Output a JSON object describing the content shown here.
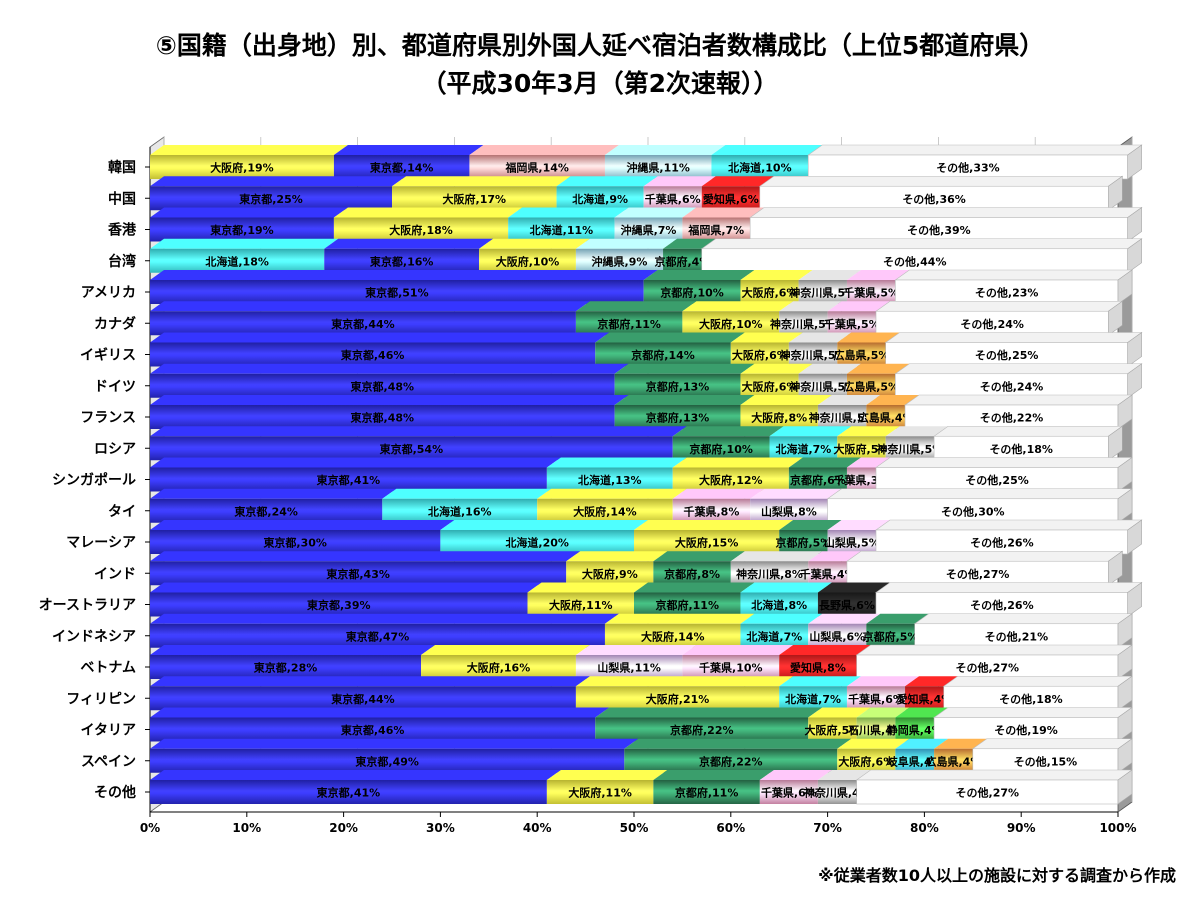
{
  "title_line1": "⑤国籍（出身地）別、都道府県別外国人延べ宿泊者数構成比（上位5都道府県）",
  "title_line2": "（平成30年3月（第2次速報））",
  "footnote": "※従業者数10人以上の施設に対する調査から作成",
  "colors": {
    "東京都": "#2a2ad8",
    "大阪府": "#f4f040",
    "福岡県": "#f39898",
    "沖縄県": "#9ad8f0",
    "北海道": "#3ee6ea",
    "中国_other": "#ffffff",
    "千葉県": "#f4a0c8",
    "愛知県": "#e82020",
    "京都府": "#2e7e56",
    "神奈川県": "#b8b8b8",
    "広島県": "#f29040",
    "山梨県": "#d8b0f0",
    "長野県": "#202020",
    "石川県": "#a0e060",
    "静岡県": "#40b840",
    "岐阜県": "#40c0f0",
    "その他": "#ffffff"
  },
  "chart_data": {
    "type": "bar",
    "orientation": "horizontal",
    "stacked": true,
    "xlim": [
      0,
      100
    ],
    "x_ticks": [
      "0%",
      "10%",
      "20%",
      "30%",
      "40%",
      "50%",
      "60%",
      "70%",
      "80%",
      "90%",
      "100%"
    ],
    "categories": [
      "韓国",
      "中国",
      "香港",
      "台湾",
      "アメリカ",
      "カナダ",
      "イギリス",
      "ドイツ",
      "フランス",
      "ロシア",
      "シンガポール",
      "タイ",
      "マレーシア",
      "インド",
      "オーストラリア",
      "インドネシア",
      "ベトナム",
      "フィリピン",
      "イタリア",
      "スペイン",
      "その他"
    ],
    "rows": [
      [
        [
          "大阪府",
          19
        ],
        [
          "東京都",
          14
        ],
        [
          "福岡県",
          14
        ],
        [
          "沖縄県",
          11
        ],
        [
          "北海道",
          10
        ],
        [
          "その他",
          33
        ]
      ],
      [
        [
          "東京都",
          25
        ],
        [
          "大阪府",
          17
        ],
        [
          "北海道",
          9
        ],
        [
          "千葉県",
          6
        ],
        [
          "愛知県",
          6
        ],
        [
          "その他",
          36
        ]
      ],
      [
        [
          "東京都",
          19
        ],
        [
          "大阪府",
          18
        ],
        [
          "北海道",
          11
        ],
        [
          "沖縄県",
          7
        ],
        [
          "福岡県",
          7
        ],
        [
          "その他",
          39
        ]
      ],
      [
        [
          "北海道",
          18
        ],
        [
          "東京都",
          16
        ],
        [
          "大阪府",
          10
        ],
        [
          "沖縄県",
          9
        ],
        [
          "京都府",
          4
        ],
        [
          "その他",
          44
        ]
      ],
      [
        [
          "東京都",
          51
        ],
        [
          "京都府",
          10
        ],
        [
          "大阪府",
          6
        ],
        [
          "神奈川県",
          5
        ],
        [
          "千葉県",
          5
        ],
        [
          "その他",
          23
        ]
      ],
      [
        [
          "東京都",
          44
        ],
        [
          "京都府",
          11
        ],
        [
          "大阪府",
          10
        ],
        [
          "神奈川県",
          5
        ],
        [
          "千葉県",
          5
        ],
        [
          "その他",
          24
        ]
      ],
      [
        [
          "東京都",
          46
        ],
        [
          "京都府",
          14
        ],
        [
          "大阪府",
          6
        ],
        [
          "神奈川県",
          5
        ],
        [
          "広島県",
          5
        ],
        [
          "その他",
          25
        ]
      ],
      [
        [
          "東京都",
          48
        ],
        [
          "京都府",
          13
        ],
        [
          "大阪府",
          6
        ],
        [
          "神奈川県",
          5
        ],
        [
          "広島県",
          5
        ],
        [
          "その他",
          24
        ]
      ],
      [
        [
          "東京都",
          48
        ],
        [
          "京都府",
          13
        ],
        [
          "大阪府",
          8
        ],
        [
          "神奈川県",
          5
        ],
        [
          "広島県",
          4
        ],
        [
          "その他",
          22
        ]
      ],
      [
        [
          "東京都",
          54
        ],
        [
          "京都府",
          10
        ],
        [
          "北海道",
          7
        ],
        [
          "大阪府",
          5
        ],
        [
          "神奈川県",
          5
        ],
        [
          "その他",
          18
        ]
      ],
      [
        [
          "東京都",
          41
        ],
        [
          "北海道",
          13
        ],
        [
          "大阪府",
          12
        ],
        [
          "京都府",
          6
        ],
        [
          "千葉県",
          3
        ],
        [
          "その他",
          25
        ]
      ],
      [
        [
          "東京都",
          24
        ],
        [
          "北海道",
          16
        ],
        [
          "大阪府",
          14
        ],
        [
          "千葉県",
          8
        ],
        [
          "山梨県",
          8
        ],
        [
          "その他",
          30
        ]
      ],
      [
        [
          "東京都",
          30
        ],
        [
          "北海道",
          20
        ],
        [
          "大阪府",
          15
        ],
        [
          "京都府",
          5
        ],
        [
          "山梨県",
          5
        ],
        [
          "その他",
          26
        ]
      ],
      [
        [
          "東京都",
          43
        ],
        [
          "大阪府",
          9
        ],
        [
          "京都府",
          8
        ],
        [
          "神奈川県",
          8
        ],
        [
          "千葉県",
          4
        ],
        [
          "その他",
          27
        ]
      ],
      [
        [
          "東京都",
          39
        ],
        [
          "大阪府",
          11
        ],
        [
          "京都府",
          11
        ],
        [
          "北海道",
          8
        ],
        [
          "長野県",
          6
        ],
        [
          "その他",
          26
        ]
      ],
      [
        [
          "東京都",
          47
        ],
        [
          "大阪府",
          14
        ],
        [
          "北海道",
          7
        ],
        [
          "山梨県",
          6
        ],
        [
          "京都府",
          5
        ],
        [
          "その他",
          21
        ]
      ],
      [
        [
          "東京都",
          28
        ],
        [
          "大阪府",
          16
        ],
        [
          "山梨県",
          11
        ],
        [
          "千葉県",
          10
        ],
        [
          "愛知県",
          8
        ],
        [
          "その他",
          27
        ]
      ],
      [
        [
          "東京都",
          44
        ],
        [
          "大阪府",
          21
        ],
        [
          "北海道",
          7
        ],
        [
          "千葉県",
          6
        ],
        [
          "愛知県",
          4
        ],
        [
          "その他",
          18
        ]
      ],
      [
        [
          "東京都",
          46
        ],
        [
          "京都府",
          22
        ],
        [
          "大阪府",
          5
        ],
        [
          "石川県",
          4
        ],
        [
          "静岡県",
          4
        ],
        [
          "その他",
          19
        ]
      ],
      [
        [
          "東京都",
          49
        ],
        [
          "京都府",
          22
        ],
        [
          "大阪府",
          6
        ],
        [
          "岐阜県",
          4
        ],
        [
          "広島県",
          4
        ],
        [
          "その他",
          15
        ]
      ],
      [
        [
          "東京都",
          41
        ],
        [
          "大阪府",
          11
        ],
        [
          "京都府",
          11
        ],
        [
          "千葉県",
          6
        ],
        [
          "神奈川県",
          4
        ],
        [
          "その他",
          27
        ]
      ]
    ]
  }
}
